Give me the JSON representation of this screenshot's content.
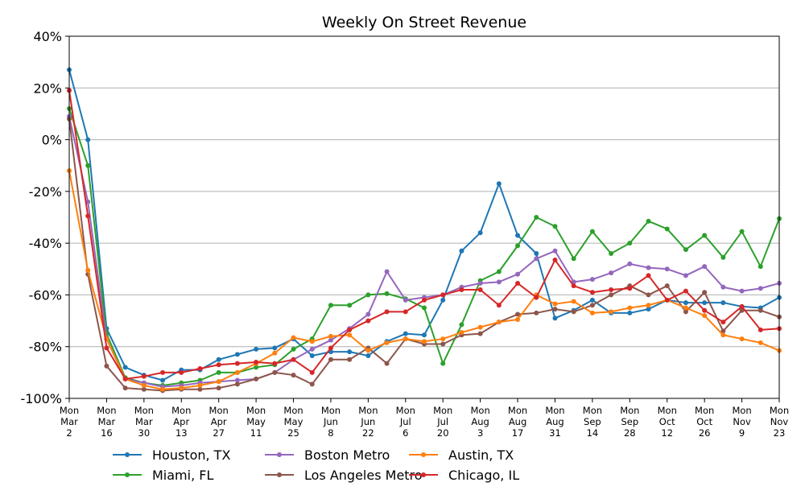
{
  "chart_data": {
    "type": "line",
    "title": "Weekly On Street Revenue",
    "xlabel": "",
    "ylabel": "",
    "ylim": [
      -100,
      40
    ],
    "yticks": [
      40,
      20,
      0,
      -20,
      -40,
      -60,
      -80,
      -100
    ],
    "ytick_labels": [
      "40%",
      "20%",
      "0%",
      "-20%",
      "-40%",
      "-60%",
      "-80%",
      "-100%"
    ],
    "grid": "horizontal",
    "legend_position": "bottom",
    "x_count": 39,
    "xtick_labels": [
      [
        "Mon",
        "Mar",
        "2"
      ],
      [
        "Mon",
        "Mar",
        "16"
      ],
      [
        "Mon",
        "Mar",
        "30"
      ],
      [
        "Mon",
        "Apr",
        "13"
      ],
      [
        "Mon",
        "Apr",
        "27"
      ],
      [
        "Mon",
        "May",
        "11"
      ],
      [
        "Mon",
        "May",
        "25"
      ],
      [
        "Mon",
        "Jun",
        "8"
      ],
      [
        "Mon",
        "Jun",
        "22"
      ],
      [
        "Mon",
        "Jul",
        "6"
      ],
      [
        "Mon",
        "Jul",
        "20"
      ],
      [
        "Mon",
        "Aug",
        "3"
      ],
      [
        "Mon",
        "Aug",
        "17"
      ],
      [
        "Mon",
        "Aug",
        "31"
      ],
      [
        "Mon",
        "Sep",
        "14"
      ],
      [
        "Mon",
        "Sep",
        "28"
      ],
      [
        "Mon",
        "Oct",
        "12"
      ],
      [
        "Mon",
        "Oct",
        "26"
      ],
      [
        "Mon",
        "Nov",
        "9"
      ],
      [
        "Mon",
        "Nov",
        "23"
      ]
    ],
    "series": [
      {
        "name": "Houston, TX",
        "color": "#1f77b4",
        "values": [
          27,
          0,
          -73,
          -88,
          -91,
          -93,
          -89,
          -89,
          -85,
          -83,
          -81,
          -80.5,
          -77,
          -83.5,
          -82,
          -82,
          -83.5,
          -78,
          -75,
          -75.5,
          -62,
          -43,
          -36,
          -17,
          -37,
          -44,
          -69,
          -66,
          -62,
          -67,
          -67,
          -65.5,
          -62,
          -63,
          -63,
          -63,
          -64.5,
          -65,
          -61
        ]
      },
      {
        "name": "Miami, FL",
        "color": "#2ca02c",
        "values": [
          12,
          -10,
          -75,
          -92,
          -94,
          -95,
          -94,
          -93,
          -90,
          -90,
          -88,
          -87,
          -81,
          -77,
          -64,
          -64,
          -60,
          -59.5,
          -61.5,
          -65,
          -86.5,
          -71.5,
          -54.5,
          -51,
          -41,
          -30,
          -33.5,
          -46,
          -35.5,
          -44,
          -40,
          -31.5,
          -34.5,
          -42.5,
          -37,
          -45.5,
          -35.5,
          -49,
          -30.5
        ]
      },
      {
        "name": "Boston Metro",
        "color": "#9467bd",
        "values": [
          9,
          -24,
          -77,
          -92.5,
          -94,
          -95.5,
          -95,
          -94,
          -93.5,
          -93,
          -92.5,
          -90,
          -85,
          -81,
          -77.5,
          -73,
          -67.5,
          -51,
          -62,
          -61,
          -60,
          -57,
          -55.5,
          -55,
          -52,
          -46,
          -43,
          -55,
          -54,
          -51.5,
          -48,
          -49.5,
          -50,
          -52.5,
          -49,
          -57,
          -58.5,
          -57.5,
          -55.5
        ]
      },
      {
        "name": "Los Angeles Metro",
        "color": "#8c564b",
        "values": [
          8,
          -52,
          -87.5,
          -96,
          -96.5,
          -97,
          -96.5,
          -96.5,
          -96,
          -94.5,
          -92.5,
          -90,
          -91,
          -94.5,
          -85,
          -85,
          -80.5,
          -86.5,
          -77,
          -79,
          -79,
          -75.5,
          -75,
          -70.5,
          -67.5,
          -67,
          -65.5,
          -66.5,
          -64,
          -60,
          -56.5,
          -60,
          -56.5,
          -66.5,
          -59,
          -74,
          -66,
          -66,
          -68.5
        ]
      },
      {
        "name": "Austin, TX",
        "color": "#ff7f0e",
        "values": [
          -12,
          -50.5,
          -77,
          -92.5,
          -95,
          -96.5,
          -96,
          -95,
          -93.5,
          -90,
          -86.5,
          -82.5,
          -76.5,
          -78,
          -76,
          -75.5,
          -81.5,
          -78.5,
          -77,
          -78,
          -77,
          -74.5,
          -72.5,
          -70.5,
          -69.5,
          -60,
          -63.5,
          -62.5,
          -67,
          -66.5,
          -65,
          -64,
          -62,
          -65,
          -68,
          -75.5,
          -77,
          -78.5,
          -81.5
        ]
      },
      {
        "name": "Chicago, IL",
        "color": "#d62728",
        "values": [
          19,
          -29.5,
          -80.5,
          -92.5,
          -91.5,
          -90,
          -90,
          -88.5,
          -87,
          -86.5,
          -86,
          -86.5,
          -85,
          -90,
          -80.5,
          -73.5,
          -70,
          -66.5,
          -66.5,
          -62,
          -60,
          -58,
          -58,
          -64,
          -55.5,
          -61,
          -46.5,
          -56.5,
          -59,
          -58,
          -57.5,
          -52.5,
          -62,
          -58.5,
          -66,
          -70.5,
          -64.5,
          -73.5,
          -73
        ]
      }
    ]
  }
}
